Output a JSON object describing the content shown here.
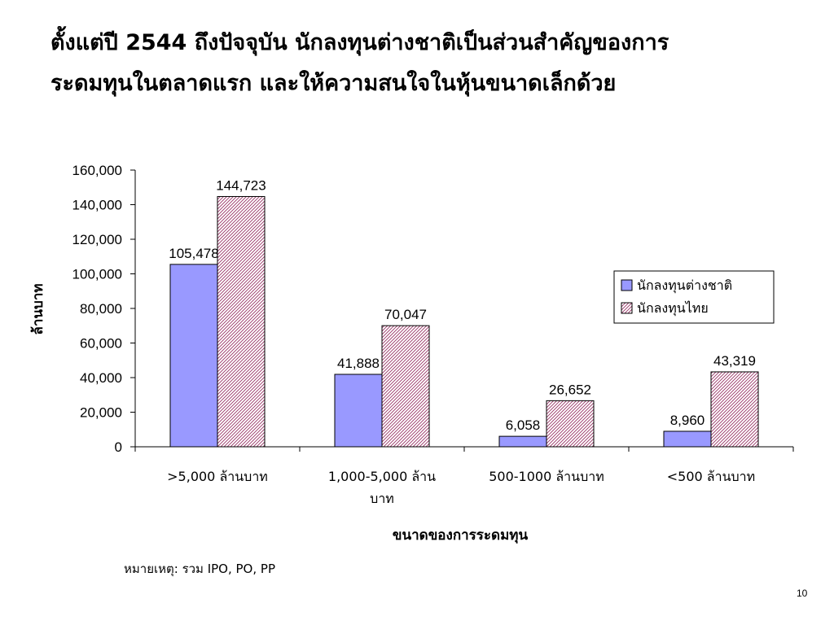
{
  "slide": {
    "title_lines": [
      "ตั้งแต่ปี 2544 ถึงปัจจุบัน นักลงทุนต่างชาติเป็นส่วนสำคัญของการ",
      "ระดมทุนในตลาดแรก และให้ความสนใจในหุ้นขนาดเล็กด้วย"
    ],
    "footnote": "หมายเหตุ: รวม IPO, PO, PP",
    "page_number": "10"
  },
  "chart_data": {
    "type": "bar",
    "categories": [
      ">5,000 ล้านบาท",
      "1,000-5,000 ล้านบาท",
      "500-1000 ล้านบาท",
      "<500 ล้านบาท"
    ],
    "category_label_lines": [
      [
        ">5,000 ล้านบาท"
      ],
      [
        "1,000-5,000 ล้าน",
        "บาท"
      ],
      [
        "500-1000 ล้านบาท"
      ],
      [
        "<500 ล้านบาท"
      ]
    ],
    "series": [
      {
        "name": "นักลงทุนต่างชาติ",
        "values": [
          105478,
          41888,
          6058,
          8960
        ],
        "value_labels": [
          "105,478",
          "41,888",
          "6,058",
          "8,960"
        ],
        "color": "#9999ff",
        "pattern": "solid"
      },
      {
        "name": "นักลงทุนไทย",
        "values": [
          144723,
          70047,
          26652,
          43319
        ],
        "value_labels": [
          "144,723",
          "70,047",
          "26,652",
          "43,319"
        ],
        "color": "#993366",
        "pattern": "diagonal-hatch"
      }
    ],
    "y_ticks": [
      "0",
      "20,000",
      "40,000",
      "60,000",
      "80,000",
      "100,000",
      "120,000",
      "140,000",
      "160,000"
    ],
    "ylim": [
      0,
      160000
    ],
    "xlabel": "ขนาดของการระดมทุน",
    "ylabel": "ล้านบาท",
    "grid": false,
    "legend_position": "right"
  }
}
